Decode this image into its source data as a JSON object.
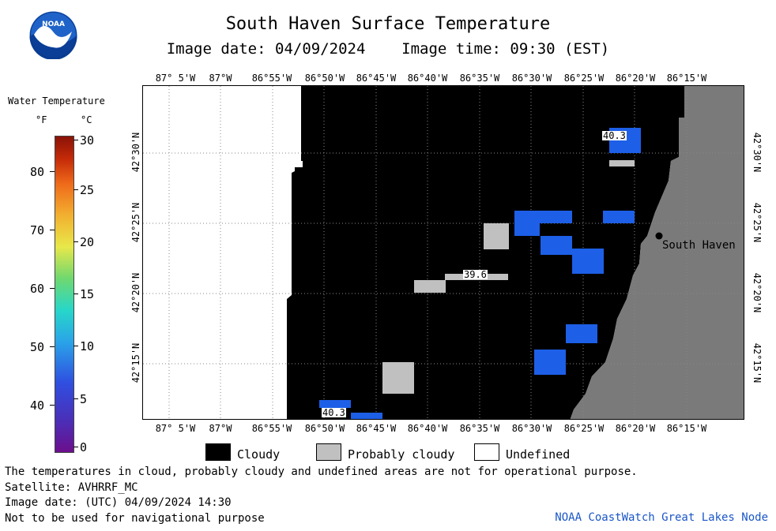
{
  "title": "South Haven Surface Temperature",
  "subtitle": "Image date: 04/09/2024    Image time: 09:30 (EST)",
  "logo": {
    "text": "NOAA",
    "icon": "noaa-logo"
  },
  "colorbar": {
    "heading": "Water Temperature",
    "unit_f": "°F",
    "unit_c": "°C",
    "f_ticks": [
      "80",
      "70",
      "60",
      "50",
      "40"
    ],
    "c_ticks": [
      "30",
      "25",
      "20",
      "15",
      "10",
      "5",
      "0"
    ]
  },
  "map": {
    "lon_labels": [
      "87° 5'W",
      "87°W",
      "86°55'W",
      "86°50'W",
      "86°45'W",
      "86°40'W",
      "86°35'W",
      "86°30'W",
      "86°25'W",
      "86°20'W",
      "86°15'W"
    ],
    "lat_labels": [
      "42°30'N",
      "42°25'N",
      "42°20'N",
      "42°15'N"
    ],
    "city": "South Haven",
    "point_values": [
      "40.3",
      "39.6",
      "40.3"
    ],
    "colors": {
      "cloudy": "#000000",
      "probably_cloudy": "#c0c0c0",
      "land": "#7a7a7a",
      "water_blue": "#1d5fe6",
      "undefined": "#ffffff"
    }
  },
  "legend": {
    "cloudy": "Cloudy",
    "probably_cloudy": "Probably cloudy",
    "undefined": "Undefined"
  },
  "footer": {
    "line1": "The temperatures in cloud, probably cloudy and undefined areas are not for operational purpose.",
    "line2": "Satellite: AVHRRF_MC",
    "line3": "Image date: (UTC) 04/09/2024  14:30",
    "line4": "Not to be used for navigational purpose",
    "credit": "NOAA CoastWatch Great Lakes Node"
  }
}
